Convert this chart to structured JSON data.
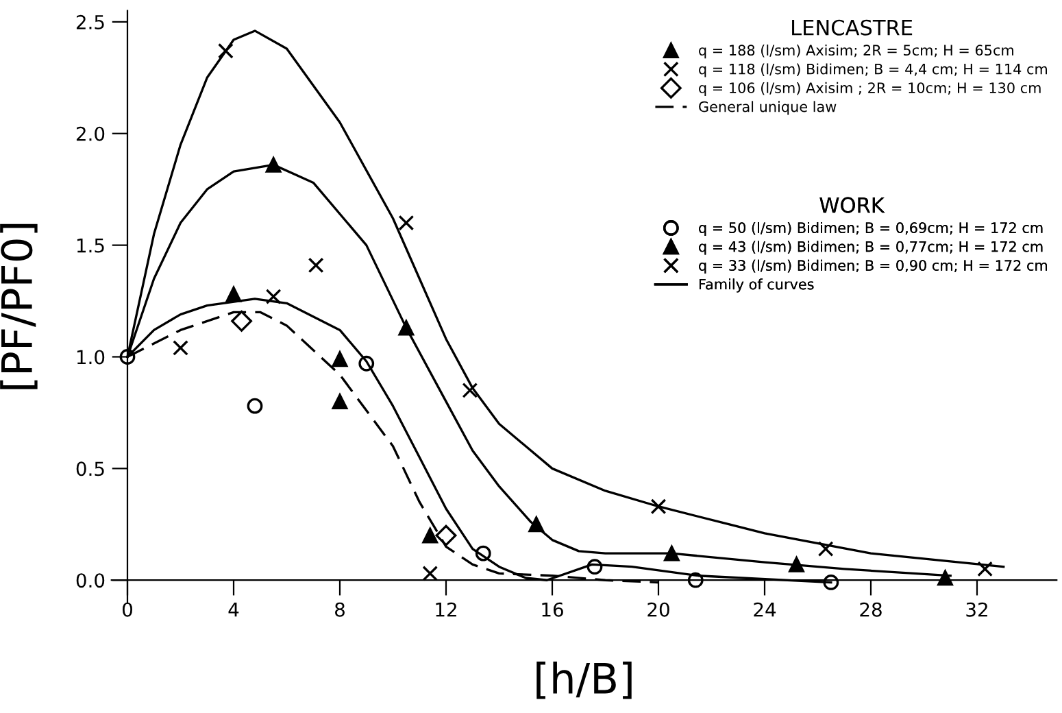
{
  "chart_data": {
    "type": "scatter",
    "xlabel": "[h/B]",
    "ylabel": "[PF/PF0]",
    "legend_title": "LENCASTRE",
    "annotations": [
      "WORK"
    ],
    "xlim": [
      -0.6,
      35
    ],
    "ylim": [
      -0.1,
      2.55
    ],
    "xticks": [
      0,
      4,
      8,
      12,
      16,
      20,
      24,
      28,
      32
    ],
    "yticks": [
      {
        "value": 0,
        "label": "0.0"
      },
      {
        "value": 0.5,
        "label": "0.5"
      },
      {
        "value": 1,
        "label": "1.0"
      },
      {
        "value": 1.5,
        "label": "1.5"
      },
      {
        "value": 2,
        "label": "2.0"
      },
      {
        "value": 2.5,
        "label": "2.5"
      }
    ],
    "grid": false,
    "legend": "top right",
    "series": [
      {
        "name": "q = 188 (l/sm) Axisim; 2R = 5cm; H = 65cm",
        "marker": "triangle",
        "color": "#000000",
        "x": [
          4,
          8,
          8,
          11.4
        ],
        "values": [
          1.28,
          0.99,
          0.8,
          0.2
        ]
      },
      {
        "name": "q = 118 (l/sm) Bidimen; B = 4,4 cm; H = 114 cm",
        "marker": "cross",
        "color": "#000000",
        "x": [
          2,
          5.5,
          11.4
        ],
        "values": [
          1.04,
          1.27,
          0.03
        ]
      },
      {
        "name": "q = 106 (l/sm) Axisim ; 2R = 10cm; H = 130 cm",
        "marker": "diamond",
        "color": "#000000",
        "x": [
          4.3,
          12
        ],
        "values": [
          1.16,
          0.2
        ]
      },
      {
        "name": "General unique law",
        "type": "line",
        "line_style": "dashed",
        "marker": "none",
        "color": "#000000",
        "x": [
          0,
          2,
          4,
          5,
          6,
          8,
          10,
          11,
          12,
          13,
          14,
          16,
          18,
          20
        ],
        "values": [
          1,
          1.12,
          1.2,
          1.2,
          1.14,
          0.92,
          0.6,
          0.35,
          0.15,
          0.07,
          0.03,
          0.02,
          0.0,
          -0.01
        ]
      },
      {
        "name": "q = 50 (l/sm) Bidimen; B = 0,69cm; H = 172 cm",
        "marker": "circle",
        "color": "#000000",
        "x": [
          0,
          4.8,
          9.0,
          13.4,
          17.6,
          21.4,
          26.5
        ],
        "values": [
          1,
          0.78,
          0.97,
          0.12,
          0.06,
          0.0,
          -0.01
        ]
      },
      {
        "name": "q = 43 (l/sm) Bidimen; B = 0,77cm; H = 172 cm",
        "marker": "triangle",
        "color": "#000000",
        "x": [
          5.5,
          10.5,
          15.4,
          20.5,
          25.2,
          30.8
        ],
        "values": [
          1.86,
          1.13,
          0.25,
          0.12,
          0.07,
          0.01
        ]
      },
      {
        "name": "q = 33 (l/sm) Bidimen; B = 0,90 cm; H = 172 cm",
        "marker": "cross",
        "color": "#000000",
        "x": [
          3.7,
          7.1,
          10.5,
          12.9,
          20,
          26.3,
          32.3
        ],
        "values": [
          2.37,
          1.41,
          1.6,
          0.85,
          0.33,
          0.14,
          0.05
        ]
      },
      {
        "name": "Family of curves",
        "type": "line",
        "line_style": "solid",
        "marker": "none",
        "color": "#000000",
        "x": [
          0,
          1,
          2,
          3,
          4,
          4.8,
          6,
          8,
          10,
          11,
          12,
          13,
          14,
          16,
          18,
          20,
          24,
          28,
          33
        ],
        "values": [
          1,
          1.55,
          1.95,
          2.25,
          2.42,
          2.46,
          2.38,
          2.05,
          1.62,
          1.35,
          1.08,
          0.86,
          0.7,
          0.5,
          0.4,
          0.33,
          0.21,
          0.12,
          0.06
        ]
      },
      {
        "type": "line",
        "line_style": "solid",
        "marker": "none",
        "color": "#000000",
        "x": [
          0,
          1,
          2,
          3,
          4,
          5.5,
          7,
          9,
          10.5,
          12,
          13,
          14,
          15.2,
          16,
          17,
          18,
          20.5,
          24,
          27,
          31
        ],
        "values": [
          1,
          1.35,
          1.6,
          1.75,
          1.83,
          1.86,
          1.78,
          1.5,
          1.13,
          0.8,
          0.58,
          0.42,
          0.26,
          0.18,
          0.13,
          0.12,
          0.12,
          0.08,
          0.05,
          0.02
        ]
      },
      {
        "type": "line",
        "line_style": "solid",
        "marker": "none",
        "color": "#000000",
        "x": [
          0,
          1,
          2,
          3,
          4.8,
          6,
          8,
          9,
          10,
          11,
          12,
          13,
          14,
          15,
          15.8,
          17.5,
          19,
          21.5,
          26.5
        ],
        "values": [
          1,
          1.12,
          1.19,
          1.23,
          1.26,
          1.24,
          1.12,
          0.98,
          0.78,
          0.55,
          0.32,
          0.14,
          0.06,
          0.01,
          0.0,
          0.07,
          0.06,
          0.02,
          -0.01
        ]
      }
    ]
  }
}
